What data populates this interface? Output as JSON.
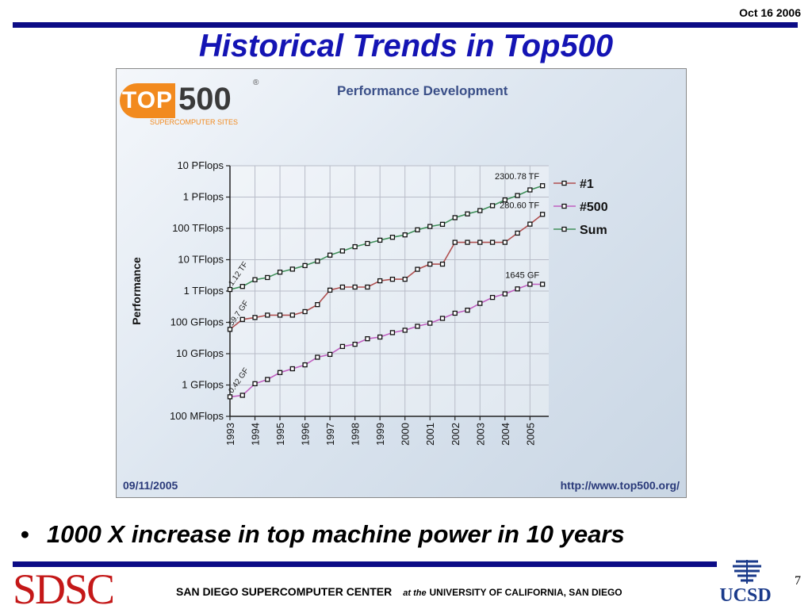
{
  "slide": {
    "date": "Oct 16 2006",
    "title": "Historical Trends in Top500",
    "bullet": "1000 X increase in top machine power in 10 years",
    "page_number": "7"
  },
  "footer": {
    "sdsc_logo": "SDSC",
    "center_name": "SAN DIEGO SUPERCOMPUTER CENTER",
    "at_the": "at the",
    "university": "UNIVERSITY OF CALIFORNIA, SAN DIEGO",
    "ucsd_logo": "UCSD"
  },
  "logo": {
    "top": "TOP",
    "num": "500",
    "reg": "®",
    "subtitle": "SUPERCOMPUTER SITES"
  },
  "chart_data": {
    "type": "line",
    "title": "Performance Development",
    "ylabel": "Performance",
    "xlabel": "",
    "y_scale": "log",
    "y_unit": "GFlops",
    "ylim": [
      0.1,
      10000000
    ],
    "y_ticks": [
      {
        "value": 10000000,
        "label": "10 PFlops"
      },
      {
        "value": 1000000,
        "label": "1 PFlops"
      },
      {
        "value": 100000,
        "label": "100 TFlops"
      },
      {
        "value": 10000,
        "label": "10 TFlops"
      },
      {
        "value": 1000,
        "label": "1 TFlops"
      },
      {
        "value": 100,
        "label": "100 GFlops"
      },
      {
        "value": 10,
        "label": "10 GFlops"
      },
      {
        "value": 1,
        "label": "1 GFlops"
      },
      {
        "value": 0.1,
        "label": "100 MFlops"
      }
    ],
    "x_ticks": [
      "1993",
      "1994",
      "1995",
      "1996",
      "1997",
      "1998",
      "1999",
      "2000",
      "2001",
      "2002",
      "2003",
      "2004",
      "2005"
    ],
    "xlim": [
      1993.0,
      2005.75
    ],
    "grid": true,
    "legend_position": "right",
    "series": [
      {
        "name": "#1",
        "color": "#b05050",
        "x": [
          1993.0,
          1993.5,
          1994.0,
          1994.5,
          1995.0,
          1995.5,
          1996.0,
          1996.5,
          1997.0,
          1997.5,
          1998.0,
          1998.5,
          1999.0,
          1999.5,
          2000.0,
          2000.5,
          2001.0,
          2001.5,
          2002.0,
          2002.5,
          2003.0,
          2003.5,
          2004.0,
          2004.5,
          2005.0,
          2005.5
        ],
        "values": [
          59.7,
          124,
          143,
          170,
          170,
          170,
          220,
          368,
          1068,
          1338,
          1338,
          1338,
          2121,
          2380,
          2380,
          4938,
          7226,
          7226,
          35860,
          35860,
          35860,
          35860,
          35860,
          70720,
          136800,
          280600
        ],
        "labels": [
          {
            "index": 0,
            "text": "59.7 GF"
          },
          {
            "index": 25,
            "text": "280.60 TF"
          }
        ]
      },
      {
        "name": "#500",
        "color": "#c060c0",
        "x": [
          1993.0,
          1993.5,
          1994.0,
          1994.5,
          1995.0,
          1995.5,
          1996.0,
          1996.5,
          1997.0,
          1997.5,
          1998.0,
          1998.5,
          1999.0,
          1999.5,
          2000.0,
          2000.5,
          2001.0,
          2001.5,
          2002.0,
          2002.5,
          2003.0,
          2003.5,
          2004.0,
          2004.5,
          2005.0,
          2005.5
        ],
        "values": [
          0.42,
          0.47,
          1.1,
          1.5,
          2.5,
          3.3,
          4.4,
          7.7,
          9.5,
          17,
          20,
          30,
          34,
          47,
          56,
          75,
          94,
          134,
          196,
          245,
          403,
          624,
          813,
          1170,
          1650,
          1645
        ],
        "labels": [
          {
            "index": 0,
            "text": "0.42 GF"
          },
          {
            "index": 25,
            "text": "1645 GF"
          }
        ]
      },
      {
        "name": "Sum",
        "color": "#40905a",
        "x": [
          1993.0,
          1993.5,
          1994.0,
          1994.5,
          1995.0,
          1995.5,
          1996.0,
          1996.5,
          1997.0,
          1997.5,
          1998.0,
          1998.5,
          1999.0,
          1999.5,
          2000.0,
          2000.5,
          2001.0,
          2001.5,
          2002.0,
          2002.5,
          2003.0,
          2003.5,
          2004.0,
          2004.5,
          2005.0,
          2005.5
        ],
        "values": [
          1120,
          1400,
          2300,
          2700,
          4000,
          5000,
          6500,
          9000,
          14000,
          19000,
          26000,
          33000,
          42000,
          52000,
          62000,
          90000,
          115000,
          135000,
          220000,
          290000,
          370000,
          530000,
          810000,
          1120000,
          1690000,
          2300780
        ],
        "labels": [
          {
            "index": 0,
            "text": "1.12 TF"
          },
          {
            "index": 25,
            "text": "2300.78 TF"
          }
        ]
      }
    ],
    "footer_left": "09/11/2005",
    "footer_right": "http://www.top500.org/"
  }
}
